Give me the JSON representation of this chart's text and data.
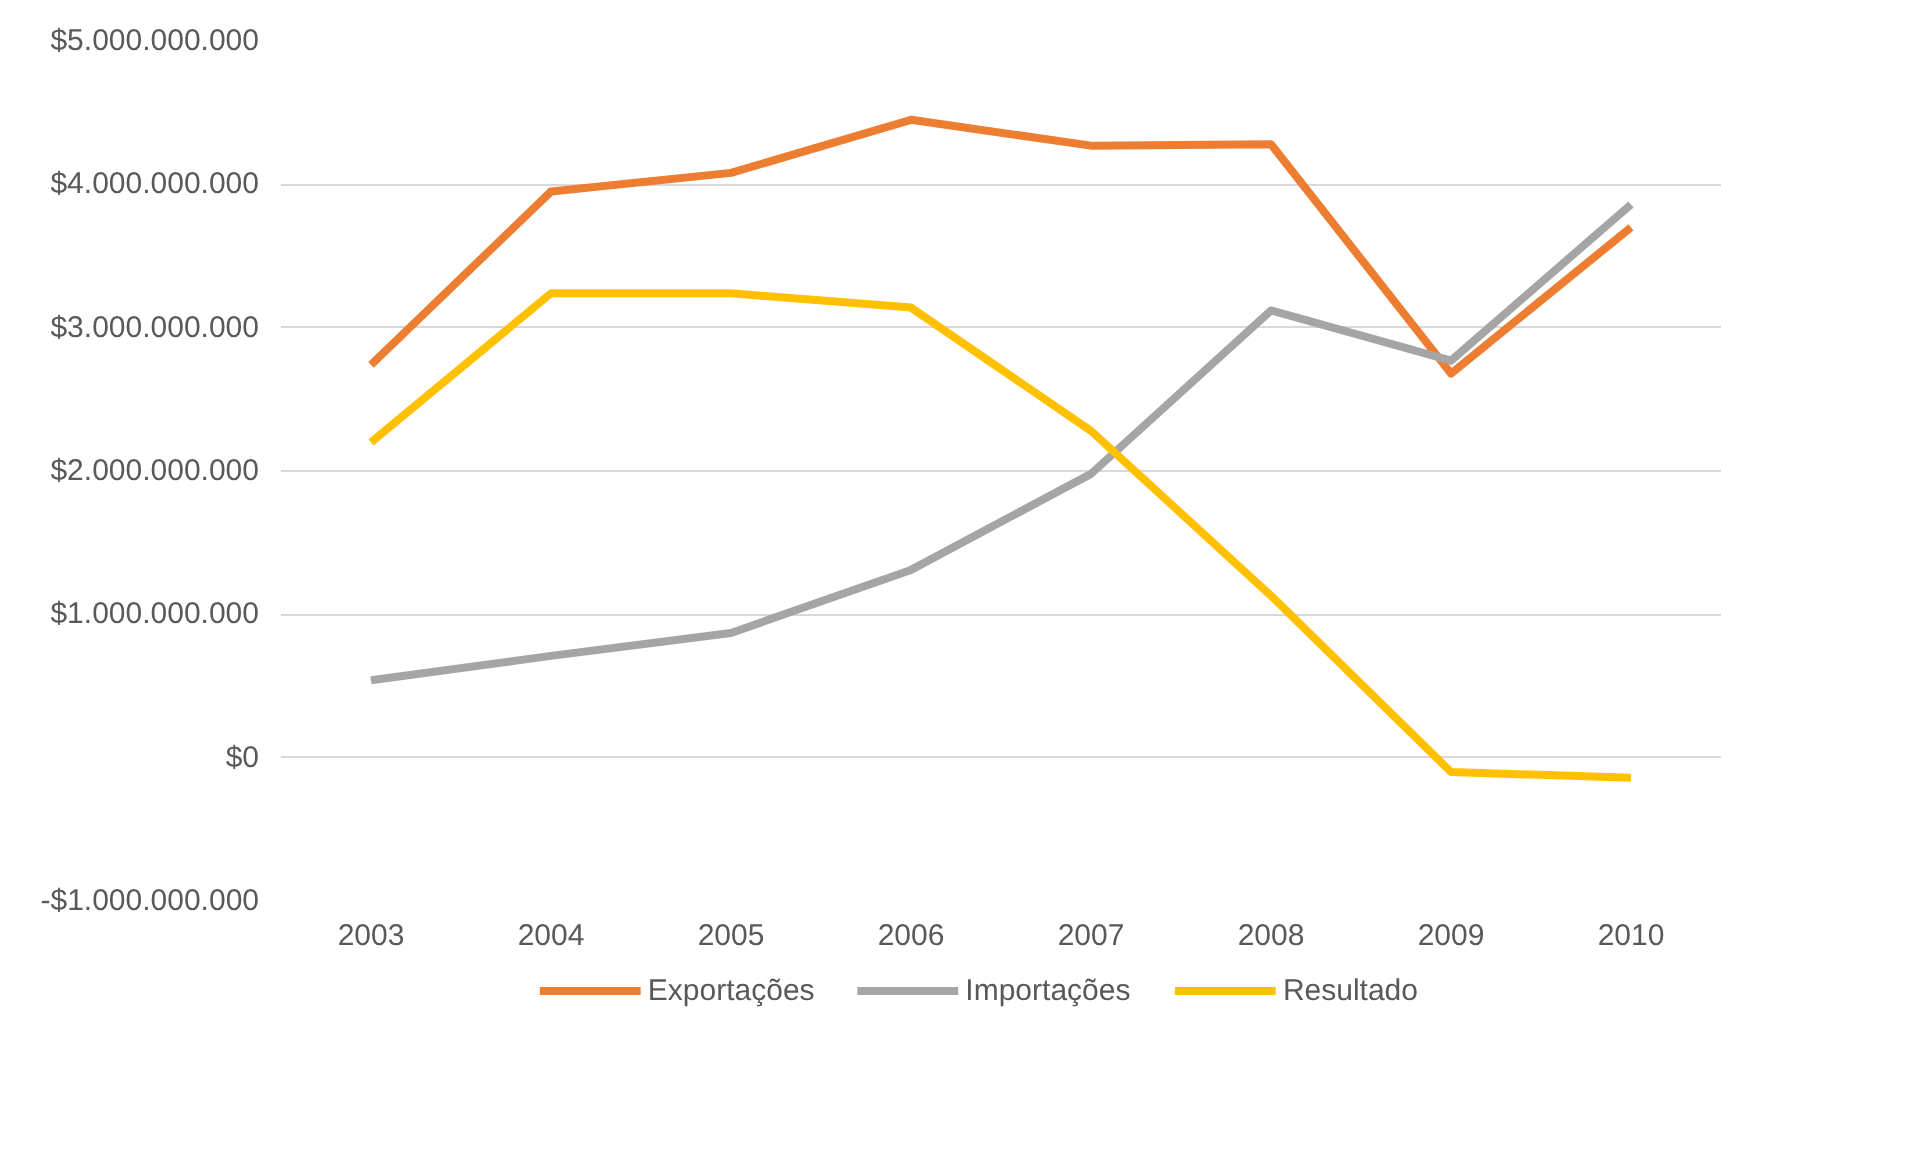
{
  "chart_data": {
    "type": "line",
    "categories": [
      "2003",
      "2004",
      "2005",
      "2006",
      "2007",
      "2008",
      "2009",
      "2010"
    ],
    "series": [
      {
        "name": "Exportações",
        "color": "#ed7d31",
        "values": [
          2740000000,
          3950000000,
          4080000000,
          4450000000,
          4270000000,
          4280000000,
          2680000000,
          3700000000
        ]
      },
      {
        "name": "Importações",
        "color": "#a5a5a5",
        "values": [
          540000000,
          710000000,
          870000000,
          1310000000,
          1980000000,
          3120000000,
          2770000000,
          3860000000
        ]
      },
      {
        "name": "Resultado",
        "color": "#ffc000",
        "values": [
          2200000000,
          3240000000,
          3240000000,
          3140000000,
          2280000000,
          1130000000,
          -100000000,
          -140000000
        ]
      }
    ],
    "ylim": [
      -1000000000,
      5000000000
    ],
    "yticks": [
      {
        "value": -1000000000,
        "label": "-$1.000.000.000"
      },
      {
        "value": 0,
        "label": "$0"
      },
      {
        "value": 1000000000,
        "label": "$1.000.000.000"
      },
      {
        "value": 2000000000,
        "label": "$2.000.000.000"
      },
      {
        "value": 3000000000,
        "label": "$3.000.000.000"
      },
      {
        "value": 4000000000,
        "label": "$4.000.000.000"
      },
      {
        "value": 5000000000,
        "label": "$5.000.000.000"
      }
    ],
    "grid": "y",
    "legend": "bottom",
    "marker": "none",
    "line_style": "solid"
  }
}
